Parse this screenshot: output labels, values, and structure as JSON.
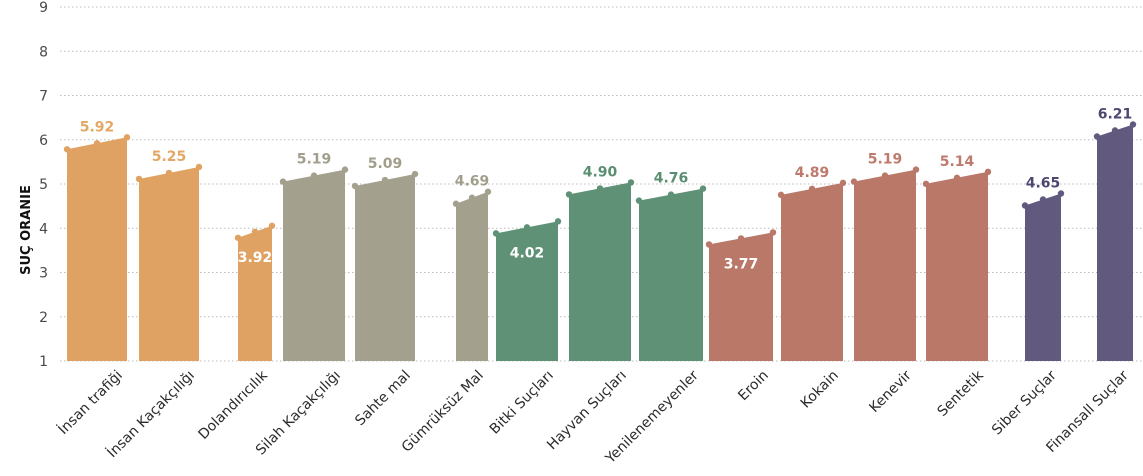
{
  "colors": {
    "orange": "#E0A263",
    "olive": "#A3A08D",
    "green": "#5E9175",
    "rust": "#BA7869",
    "purple": "#615A7E",
    "orange_label": "#E3A865",
    "olive_label": "#A19E8B",
    "green_label": "#5A8E71",
    "rust_label": "#BE7A6C",
    "purple_label": "#4E4870",
    "grid": "#BDBDBD",
    "axis_text": "#4A4A4A"
  },
  "chart_data": {
    "type": "bar",
    "ylabel": "SUÇ ORANIE",
    "xlabel": "",
    "title": "",
    "ylim": [
      1,
      9
    ],
    "yticks": [
      1,
      2,
      3,
      4,
      5,
      6,
      7,
      8,
      9
    ],
    "grid": true,
    "categories": [
      "İnsan trafiği",
      "İnsan Kaçakçılığı",
      "Dolandırıcılık",
      "Silah Kaçakçılığı",
      "Sahte mal",
      "Gümrüksüz Mal",
      "Bitki Suçları",
      "Hayvan Suçları",
      "Yenilenemeyenler",
      "Eroin",
      "Kokain",
      "Kenevir",
      "Sentetik",
      "Siber Suçlar",
      "Finansall Suçlar"
    ],
    "values": [
      5.92,
      5.25,
      3.92,
      5.19,
      5.09,
      4.69,
      4.02,
      4.9,
      4.76,
      3.77,
      4.89,
      5.19,
      5.14,
      4.65,
      6.21
    ],
    "value_labels": [
      "5.92",
      "5.25",
      "3.92",
      "5.19",
      "5.09",
      "4.69",
      "4.02",
      "4.90",
      "4.76",
      "3.77",
      "4.89",
      "5.19",
      "5.14",
      "4.65",
      "6.21"
    ],
    "groups": [
      "orange",
      "orange",
      "orange",
      "olive",
      "olive",
      "olive",
      "green",
      "green",
      "green",
      "rust",
      "rust",
      "rust",
      "rust",
      "purple",
      "purple"
    ]
  }
}
